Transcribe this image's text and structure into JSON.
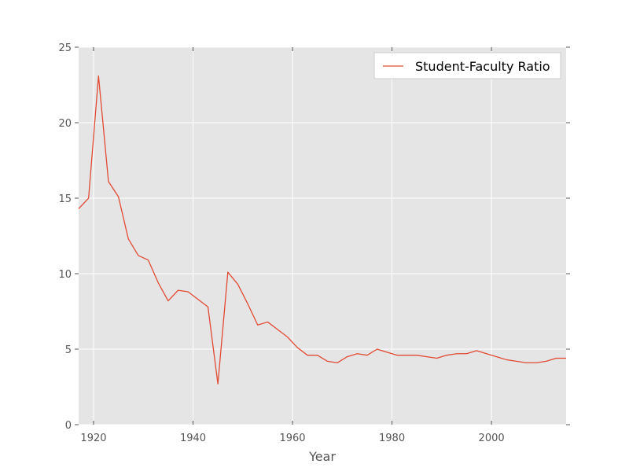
{
  "chart_data": {
    "type": "line",
    "title": "",
    "xlabel": "Year",
    "ylabel": "",
    "xlim": [
      1917,
      2015
    ],
    "ylim": [
      0,
      25
    ],
    "xticks": [
      1920,
      1940,
      1960,
      1980,
      2000
    ],
    "yticks": [
      0,
      5,
      10,
      15,
      20,
      25
    ],
    "grid": true,
    "legend_position": "top-right",
    "series": [
      {
        "name": "Student-Faculty Ratio",
        "color": "#e24a33",
        "x": [
          1917,
          1919,
          1921,
          1923,
          1925,
          1927,
          1929,
          1931,
          1933,
          1935,
          1937,
          1939,
          1941,
          1943,
          1945,
          1947,
          1949,
          1951,
          1953,
          1955,
          1957,
          1959,
          1961,
          1963,
          1965,
          1967,
          1969,
          1971,
          1973,
          1975,
          1977,
          1979,
          1981,
          1983,
          1985,
          1987,
          1989,
          1991,
          1993,
          1995,
          1997,
          1999,
          2001,
          2003,
          2005,
          2007,
          2009,
          2011,
          2013,
          2015
        ],
        "y": [
          14.3,
          15.0,
          23.1,
          16.1,
          15.1,
          12.3,
          11.2,
          10.9,
          9.4,
          8.2,
          8.9,
          8.8,
          8.3,
          7.8,
          2.7,
          10.1,
          9.3,
          8.0,
          6.6,
          6.8,
          6.3,
          5.8,
          5.1,
          4.6,
          4.6,
          4.2,
          4.1,
          4.5,
          4.7,
          4.6,
          5.0,
          4.8,
          4.6,
          4.6,
          4.6,
          4.5,
          4.4,
          4.6,
          4.7,
          4.7,
          4.9,
          4.7,
          4.5,
          4.3,
          4.2,
          4.1,
          4.1,
          4.2,
          4.4,
          4.4
        ]
      }
    ]
  }
}
